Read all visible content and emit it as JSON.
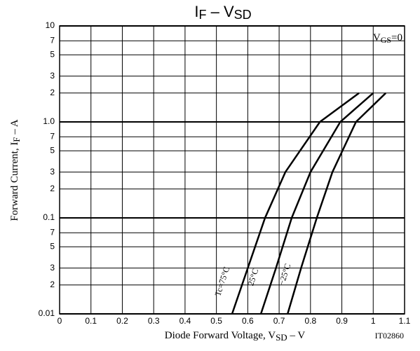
{
  "chart_data": {
    "type": "line",
    "title_parts": [
      "I",
      "F",
      " – V",
      "SD"
    ],
    "xlabel_parts": [
      "Diode Forward Voltage, V",
      "SD",
      " – V"
    ],
    "ylabel_parts": [
      "Forward Current, I",
      "F",
      " – A"
    ],
    "annotation_parts": [
      "V",
      "GS",
      "=0"
    ],
    "code": "IT02860",
    "xlim": [
      0,
      1.1
    ],
    "xticks": [
      0,
      0.1,
      0.2,
      0.3,
      0.4,
      0.5,
      0.6,
      0.7,
      0.8,
      0.9,
      1.0,
      1.1
    ],
    "ylim": [
      0.01,
      10
    ],
    "yticks": [
      10,
      {
        "value": 7,
        "label": "7"
      },
      5,
      3,
      2,
      {
        "value": 1,
        "label": "1.0"
      },
      {
        "value": 0.7,
        "label": "7"
      },
      {
        "value": 0.5,
        "label": "5"
      },
      {
        "value": 0.3,
        "label": "3"
      },
      {
        "value": 0.2,
        "label": "2"
      },
      0.1,
      {
        "value": 0.07,
        "label": "7"
      },
      {
        "value": 0.05,
        "label": "5"
      },
      {
        "value": 0.03,
        "label": "3"
      },
      {
        "value": 0.02,
        "label": "2"
      },
      0.01
    ],
    "log_y": true,
    "grid": true,
    "series": [
      {
        "name": "Tc=75°C",
        "color": "#000000",
        "x": [
          0.55,
          0.6,
          0.655,
          0.72,
          0.83,
          0.955
        ],
        "values": [
          0.01,
          0.03,
          0.1,
          0.3,
          1,
          2
        ]
      },
      {
        "name": "25°C",
        "color": "#000000",
        "x": [
          0.642,
          0.69,
          0.74,
          0.8,
          0.895,
          1.0
        ],
        "values": [
          0.01,
          0.03,
          0.1,
          0.3,
          1,
          2
        ]
      },
      {
        "name": "−25°C",
        "color": "#000000",
        "x": [
          0.727,
          0.77,
          0.82,
          0.87,
          0.945,
          1.04
        ],
        "values": [
          0.01,
          0.03,
          0.1,
          0.3,
          1,
          2
        ]
      }
    ]
  }
}
